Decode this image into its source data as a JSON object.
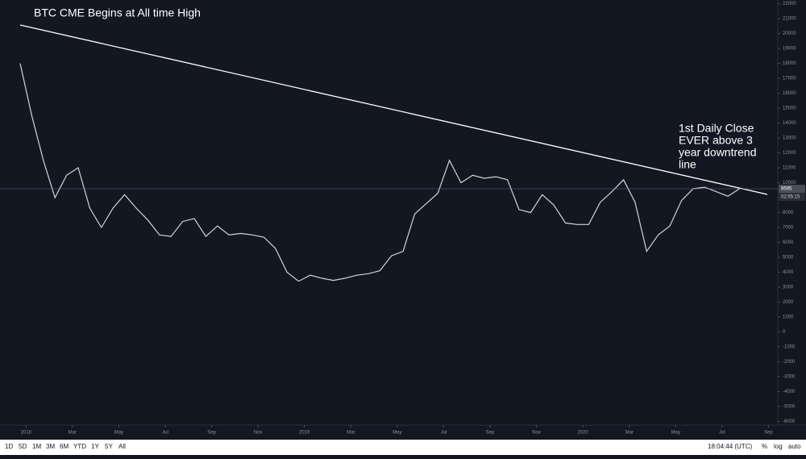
{
  "chart_data": {
    "type": "line",
    "annotations": [
      {
        "lines": [
          "BTC CME Begins at All time High"
        ]
      },
      {
        "lines": [
          "1st Daily Close",
          "EVER above 3",
          "year downtrend",
          "line"
        ]
      }
    ],
    "series": [
      {
        "color": "#d1d4dc",
        "values": [
          18000,
          14500,
          11500,
          9000,
          10500,
          11000,
          8300,
          7000,
          8300,
          9200,
          8300,
          7500,
          6500,
          6400,
          7400,
          7600,
          6400,
          7100,
          6500,
          6600,
          6500,
          6350,
          5600,
          4000,
          3400,
          3800,
          3600,
          3450,
          3600,
          3800,
          3900,
          4100,
          5100,
          5400,
          7900,
          8600,
          9300,
          11500,
          10000,
          10500,
          10300,
          10400,
          10200,
          8200,
          8000,
          9200,
          8500,
          7300,
          7200,
          7200,
          8700,
          9400,
          10200,
          8700,
          5400,
          6500,
          7100,
          8800,
          9600,
          9700,
          9400,
          9100,
          9595
        ]
      }
    ],
    "xlim": [
      -1.74,
      65.3
    ],
    "xticks": [
      {
        "value": 0.5,
        "label": "2018"
      },
      {
        "value": 4.5,
        "label": "Mar"
      },
      {
        "value": 8.5,
        "label": "May"
      },
      {
        "value": 12.5,
        "label": "Jul"
      },
      {
        "value": 16.5,
        "label": "Sep"
      },
      {
        "value": 20.5,
        "label": "Nov"
      },
      {
        "value": 24.5,
        "label": "2019"
      },
      {
        "value": 28.5,
        "label": "Mar"
      },
      {
        "value": 32.5,
        "label": "May"
      },
      {
        "value": 36.5,
        "label": "Jul"
      },
      {
        "value": 40.5,
        "label": "Sep"
      },
      {
        "value": 44.5,
        "label": "Nov"
      },
      {
        "value": 48.5,
        "label": "2020"
      },
      {
        "value": 52.5,
        "label": "Mar"
      },
      {
        "value": 56.5,
        "label": "May"
      },
      {
        "value": 60.5,
        "label": "Jul"
      },
      {
        "value": 64.5,
        "label": "Sep"
      }
    ],
    "ylim": [
      -6250,
      22250
    ],
    "yticks": [
      -6000,
      -5000,
      -4000,
      -3000,
      -2000,
      -1000,
      0,
      1000,
      2000,
      3000,
      4000,
      5000,
      6000,
      7000,
      8000,
      9000,
      10000,
      11000,
      12000,
      13000,
      14000,
      15000,
      16000,
      17000,
      18000,
      19000,
      20000,
      21000,
      22000
    ],
    "last_price": 9595,
    "countdown": "02:55:15"
  },
  "toolbar": {
    "ranges": [
      "1D",
      "5D",
      "1M",
      "3M",
      "6M",
      "YTD",
      "1Y",
      "5Y",
      "All"
    ],
    "clock": "18:04:44 (UTC)",
    "options": [
      "%",
      "log",
      "auto"
    ]
  }
}
